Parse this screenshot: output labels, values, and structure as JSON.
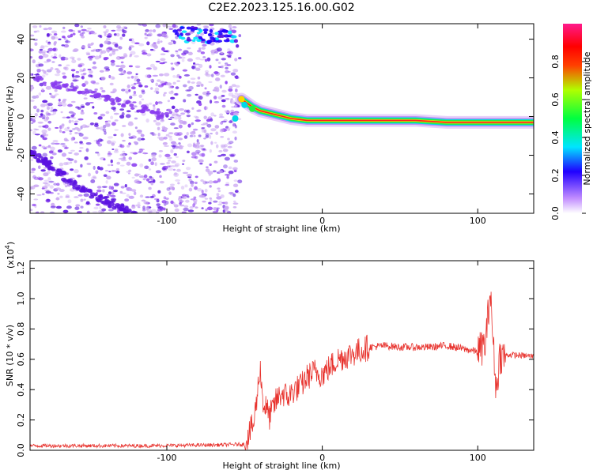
{
  "title": "C2E2.2023.125.16.00.G02",
  "colors": {
    "background": "#ffffff",
    "snr_line": "#e8332e",
    "scatter_light": "#c9a6f2",
    "scatter_mid": "#8a3cf0",
    "scatter_dark": "#5a12e0"
  },
  "chart_data": [
    {
      "type": "heatmap",
      "xlabel": "Height of straight line (km)",
      "ylabel": "Frequency (Hz)",
      "xlim": [
        -188,
        136
      ],
      "ylim": [
        -50,
        48
      ],
      "xticks": [
        -100,
        0,
        100
      ],
      "yticks": [
        -40,
        -20,
        0,
        20,
        40
      ],
      "grid": false,
      "colorbar": {
        "label": "Normalized spectral amplitude",
        "range": [
          0.0,
          1.0
        ],
        "ticks": [
          "0.0",
          "0.2",
          "0.4",
          "0.6",
          "0.8"
        ],
        "colormap": "rainbow (magenta-blue-cyan-green-yellow-red-pink)"
      },
      "features": {
        "noise_region_x": [
          -188,
          -53
        ],
        "signal_band_x": [
          -53,
          136
        ],
        "signal_band_frequency_hz": [
          [
            -52,
            9
          ],
          [
            -45,
            5
          ],
          [
            -40,
            3
          ],
          [
            -30,
            1
          ],
          [
            -20,
            -1
          ],
          [
            -10,
            -2
          ],
          [
            0,
            -2
          ],
          [
            20,
            -2
          ],
          [
            40,
            -2
          ],
          [
            60,
            -2
          ],
          [
            80,
            -3
          ],
          [
            100,
            -3
          ],
          [
            110,
            -3
          ],
          [
            120,
            -3
          ],
          [
            136,
            -3
          ]
        ],
        "noise_diagonal_streak_1": [
          [
            -188,
            -18
          ],
          [
            -150,
            -40
          ],
          [
            -120,
            -50
          ]
        ],
        "noise_diagonal_streak_2": [
          [
            -188,
            20
          ],
          [
            -140,
            10
          ],
          [
            -100,
            0
          ]
        ],
        "noise_bright_patch": {
          "x": [
            -95,
            -55
          ],
          "y": [
            38,
            46
          ]
        }
      }
    },
    {
      "type": "line",
      "xlabel": "Height of straight line (km)",
      "ylabel": "SNR (10 * v/v)",
      "scale_note": "(x10",
      "scale_exponent": "4",
      "xlim": [
        -188,
        136
      ],
      "ylim": [
        0,
        1.25
      ],
      "xticks": [
        -100,
        0,
        100
      ],
      "yticks": [
        0.0,
        0.2,
        0.4,
        0.6,
        0.8,
        1.0,
        1.2
      ],
      "grid": false,
      "series": [
        {
          "x": [
            -188,
            -150,
            -110,
            -70,
            -50,
            -44,
            -42,
            -40,
            -38,
            -36,
            -34,
            -30,
            -26,
            -22,
            -18,
            -14,
            -10,
            -5,
            0,
            5,
            10,
            15,
            20,
            25,
            30,
            40,
            50,
            60,
            70,
            80,
            90,
            100,
            105,
            108,
            110,
            112,
            114,
            120,
            136
          ],
          "y": [
            0.03,
            0.03,
            0.03,
            0.035,
            0.04,
            0.18,
            0.35,
            0.55,
            0.3,
            0.28,
            0.22,
            0.32,
            0.38,
            0.35,
            0.4,
            0.42,
            0.48,
            0.52,
            0.5,
            0.55,
            0.6,
            0.62,
            0.64,
            0.66,
            0.68,
            0.69,
            0.68,
            0.68,
            0.68,
            0.69,
            0.67,
            0.65,
            0.7,
            1.05,
            0.7,
            0.38,
            0.62,
            0.63,
            0.62
          ]
        }
      ]
    }
  ]
}
